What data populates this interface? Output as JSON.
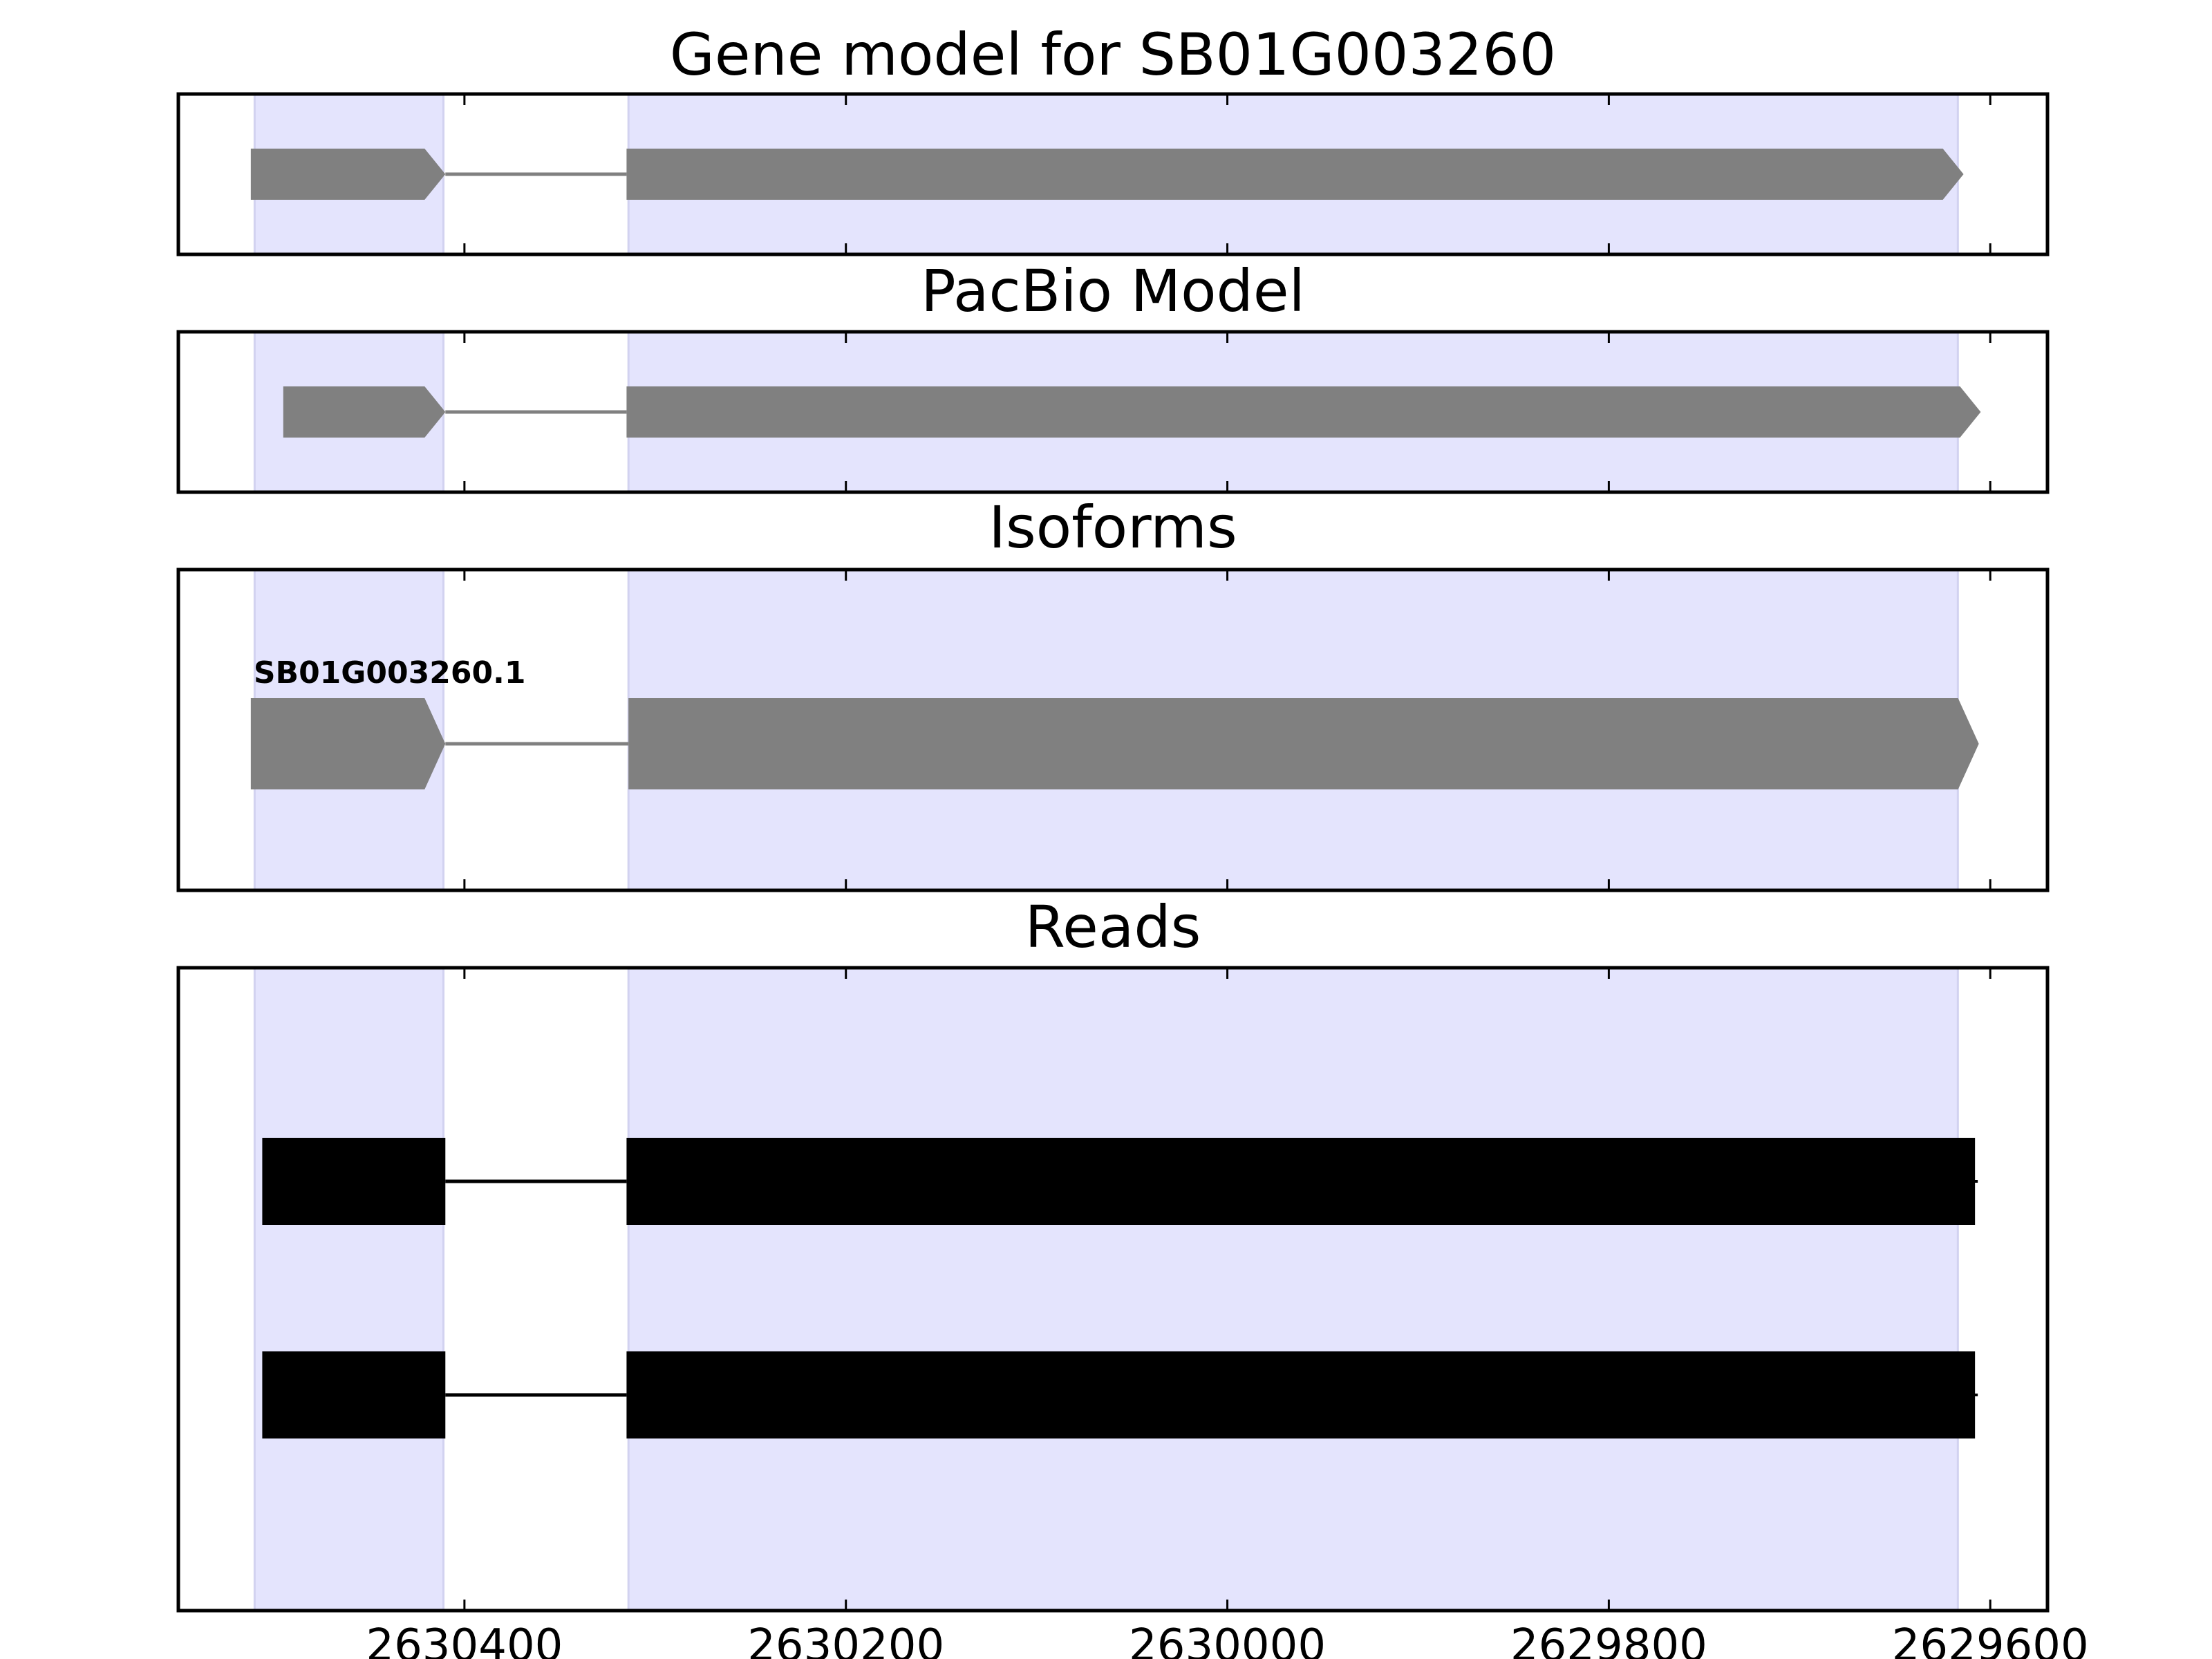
{
  "chart_data": {
    "type": "gene_model_tracks",
    "x_axis": {
      "reversed": true,
      "xlim": [
        2630550,
        2629570
      ],
      "ticks": [
        2630400,
        2630200,
        2630000,
        2629800,
        2629600
      ],
      "tick_labels": [
        "2630400",
        "2630200",
        "2630000",
        "2629800",
        "2629600"
      ]
    },
    "highlight_regions": [
      {
        "start": 2630510,
        "end": 2630411
      },
      {
        "start": 2630314,
        "end": 2629617
      }
    ],
    "colors": {
      "highlight": "#e4e4fd",
      "gene_feature": "#808080",
      "read_feature": "#000000",
      "frame": "#000000",
      "background": "#ffffff"
    },
    "panels": [
      {
        "title": "Gene model for SB01G003260",
        "kind": "model",
        "features": [
          {
            "exons": [
              {
                "start": 2630512,
                "end": 2630410
              },
              {
                "start": 2630315,
                "end": 2629614
              }
            ],
            "strand": "-"
          }
        ]
      },
      {
        "title": "PacBio Model",
        "kind": "model",
        "features": [
          {
            "exons": [
              {
                "start": 2630495,
                "end": 2630410
              },
              {
                "start": 2630315,
                "end": 2629605
              }
            ],
            "strand": "-"
          }
        ]
      },
      {
        "title": "Isoforms",
        "kind": "isoform",
        "features": [
          {
            "label": "SB01G003260.1",
            "exons": [
              {
                "start": 2630512,
                "end": 2630410
              },
              {
                "start": 2630314,
                "end": 2629606
              }
            ],
            "strand": "-"
          }
        ]
      },
      {
        "title": "Reads",
        "kind": "reads",
        "features": [
          {
            "exons": [
              {
                "start": 2630506,
                "end": 2630410
              },
              {
                "start": 2630315,
                "end": 2629608
              }
            ]
          },
          {
            "exons": [
              {
                "start": 2630506,
                "end": 2630410
              },
              {
                "start": 2630315,
                "end": 2629608
              }
            ]
          }
        ]
      }
    ]
  }
}
